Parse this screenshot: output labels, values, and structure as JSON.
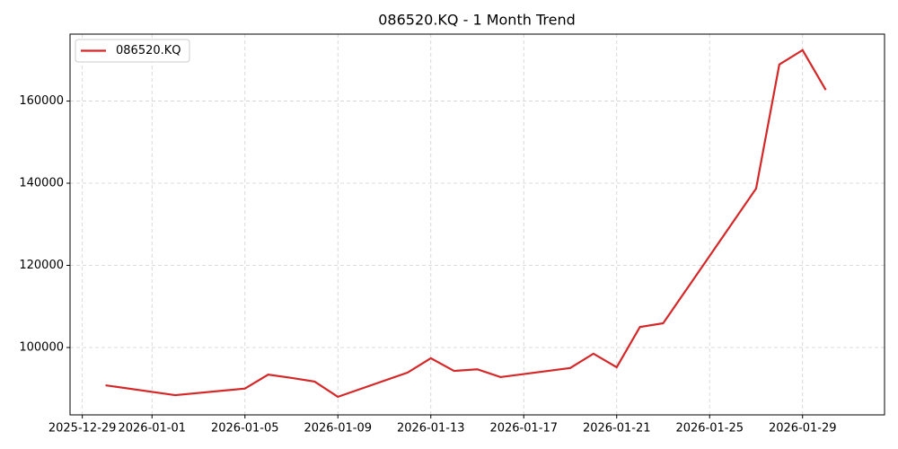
{
  "chart_data": {
    "type": "line",
    "title": "086520.KQ - 1 Month Trend",
    "x": [
      "2025-12-30",
      "2026-01-02",
      "2026-01-05",
      "2026-01-06",
      "2026-01-07",
      "2026-01-08",
      "2026-01-09",
      "2026-01-12",
      "2026-01-13",
      "2026-01-14",
      "2026-01-15",
      "2026-01-16",
      "2026-01-19",
      "2026-01-20",
      "2026-01-21",
      "2026-01-22",
      "2026-01-23",
      "2026-01-27",
      "2026-01-28",
      "2026-01-29",
      "2026-01-30"
    ],
    "series": [
      {
        "name": "086520.KQ",
        "color": "#d62728",
        "values": [
          90800,
          88400,
          90000,
          93400,
          92600,
          91700,
          88000,
          93900,
          97400,
          94300,
          94700,
          92800,
          95000,
          98500,
          95200,
          105000,
          105900,
          138700,
          168900,
          172400,
          162700
        ]
      }
    ],
    "xlim": [
      "2025-12-28T11:20",
      "2026-02-01T12:40"
    ],
    "xticks": [
      "2025-12-29",
      "2026-01-01",
      "2026-01-05",
      "2026-01-09",
      "2026-01-13",
      "2026-01-17",
      "2026-01-21",
      "2026-01-25",
      "2026-01-29"
    ],
    "ylim": [
      83600,
      176300
    ],
    "yticks": [
      100000,
      120000,
      140000,
      160000
    ],
    "grid": true,
    "legend": "upper left"
  }
}
